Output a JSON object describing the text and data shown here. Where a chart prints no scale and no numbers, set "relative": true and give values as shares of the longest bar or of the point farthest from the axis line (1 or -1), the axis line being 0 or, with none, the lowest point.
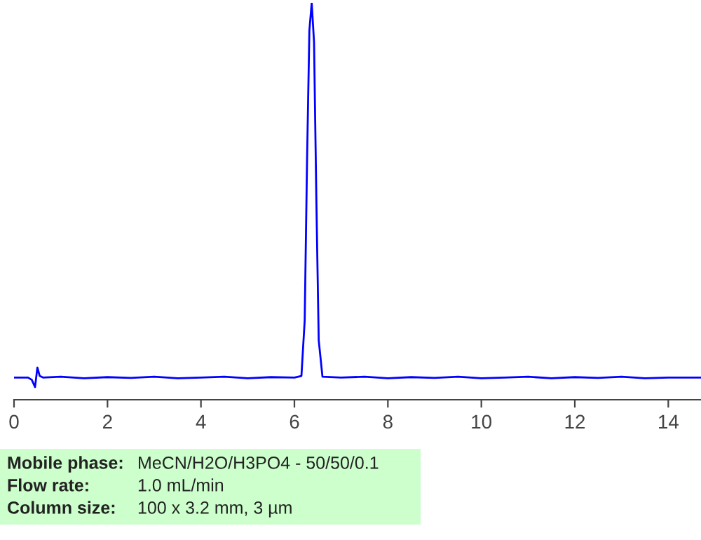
{
  "chart_data": {
    "type": "line",
    "relative": true,
    "xlim": [
      0,
      14.7
    ],
    "xticks": [
      0,
      2,
      4,
      6,
      8,
      10,
      12,
      14
    ],
    "grid": false,
    "legend": false,
    "marker": "none",
    "line_style": "solid",
    "series": [
      {
        "color": "#0000ff",
        "x": [
          0,
          0.3,
          0.38,
          0.45,
          0.5,
          0.55,
          0.62,
          1.0,
          1.5,
          2.0,
          2.5,
          3.0,
          3.5,
          4.0,
          4.5,
          5.0,
          5.5,
          6.0,
          6.15,
          6.22,
          6.27,
          6.32,
          6.37,
          6.42,
          6.47,
          6.52,
          6.6,
          7.0,
          7.5,
          8.0,
          8.5,
          9.0,
          9.5,
          10.0,
          10.5,
          11.0,
          11.5,
          12.0,
          12.5,
          13.0,
          13.5,
          14.0,
          14.7
        ],
        "values": [
          0.056,
          0.056,
          0.05,
          0.032,
          0.081,
          0.06,
          0.056,
          0.058,
          0.054,
          0.057,
          0.055,
          0.058,
          0.054,
          0.056,
          0.058,
          0.054,
          0.057,
          0.056,
          0.06,
          0.2,
          0.6,
          0.93,
          1.0,
          0.9,
          0.5,
          0.15,
          0.058,
          0.056,
          0.058,
          0.054,
          0.057,
          0.055,
          0.058,
          0.054,
          0.056,
          0.058,
          0.054,
          0.057,
          0.055,
          0.058,
          0.054,
          0.056,
          0.056
        ]
      }
    ],
    "annotations": [
      "Mobile phase:",
      "MeCN/H2O/H3PO4 - 50/50/0.1",
      "Flow rate:",
      "1.0 mL/min",
      "Column size:",
      "100 x 3.2 mm, 3 µm"
    ]
  }
}
